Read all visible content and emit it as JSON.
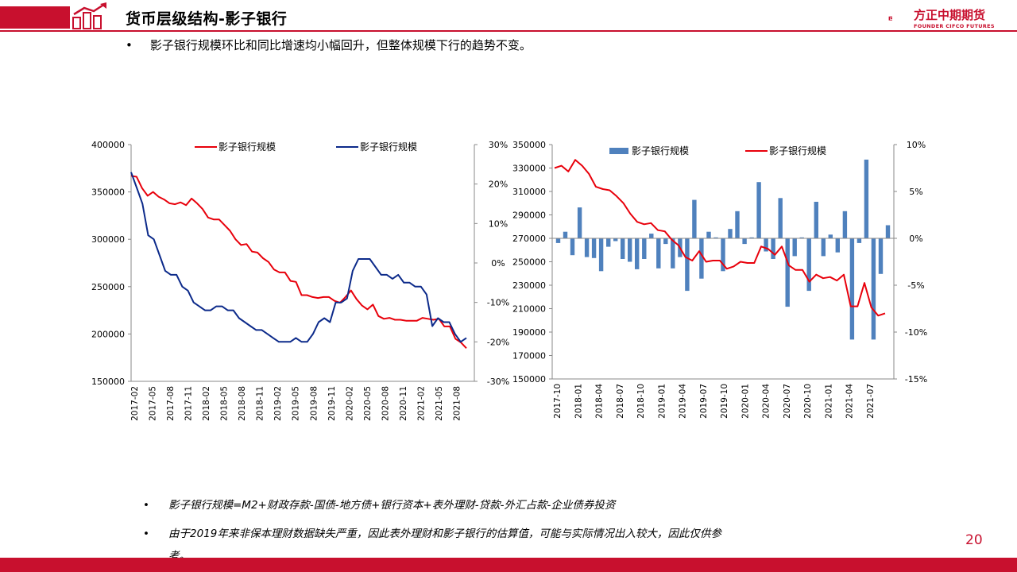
{
  "header": {
    "title": "货币层级结构-影子银行",
    "logo_cn": "方正中期期货",
    "logo_en": "FOUNDER CIFCO FUTURES",
    "accent_color": "#c8102e"
  },
  "bullet_top": "影子银行规模环比和同比增速均小幅回升，但整体规模下行的趋势不变。",
  "notes": [
    "影子银行规模=M2+财政存款-国债-地方债+银行资本+表外理财-贷款-外汇占款-企业债券投资",
    "由于2019年来非保本理财数据缺失严重，因此表外理财和影子银行的估算值，可能与实际情况出入较大，因此仅供参",
    "考。"
  ],
  "page_number": "20",
  "chart_data": [
    {
      "type": "line",
      "legend": [
        {
          "name": "影子银行规模",
          "color": "#e8000b",
          "axis": "left"
        },
        {
          "name": "影子银行规模",
          "color": "#0c2a8a",
          "axis": "right"
        }
      ],
      "x_tick_labels": [
        "2017-02",
        "2017-05",
        "2017-08",
        "2017-11",
        "2018-02",
        "2018-05",
        "2018-08",
        "2018-11",
        "2019-02",
        "2019-05",
        "2019-08",
        "2019-11",
        "2020-02",
        "2020-05",
        "2020-08",
        "2020-11",
        "2021-02",
        "2021-05",
        "2021-08"
      ],
      "y_left": {
        "min": 150000,
        "max": 400000,
        "ticks": [
          "400000",
          "350000",
          "300000",
          "250000",
          "200000",
          "150000"
        ]
      },
      "y_right": {
        "min": -30,
        "max": 30,
        "ticks": [
          "30%",
          "20%",
          "10%",
          "0%",
          "-10%",
          "-20%",
          "-30%"
        ]
      },
      "series": [
        {
          "name": "影子银行规模",
          "axis": "left",
          "color": "#e8000b",
          "values": [
            367000,
            366000,
            354000,
            346000,
            350000,
            345000,
            342000,
            338000,
            337000,
            339000,
            336000,
            343000,
            338000,
            332000,
            323000,
            321000,
            321000,
            315000,
            309000,
            300000,
            294000,
            295000,
            287000,
            286000,
            280000,
            276000,
            268000,
            265000,
            265000,
            256000,
            255000,
            241000,
            241000,
            239000,
            238000,
            239000,
            239000,
            235000,
            233000,
            239000,
            246000,
            237000,
            230000,
            226000,
            231000,
            219000,
            216000,
            217000,
            215000,
            215000,
            214000,
            214000,
            214000,
            217000,
            216000,
            215000,
            216000,
            208000,
            208000,
            195000,
            191000,
            185000
          ]
        },
        {
          "name": "影子银行规模",
          "axis": "right",
          "color": "#0c2a8a",
          "values": [
            23,
            19,
            15,
            7,
            6,
            2,
            -2,
            -3,
            -3,
            -6,
            -7,
            -10,
            -11,
            -12,
            -12,
            -11,
            -11,
            -12,
            -12,
            -14,
            -15,
            -16,
            -17,
            -17,
            -18,
            -19,
            -20,
            -20,
            -20,
            -19,
            -20,
            -20,
            -18,
            -15,
            -14,
            -15,
            -10,
            -10,
            -9,
            -2,
            1,
            1,
            1,
            -1,
            -3,
            -3,
            -4,
            -3,
            -5,
            -5,
            -6,
            -6,
            -8,
            -16,
            -14,
            -15,
            -15,
            -18,
            -20,
            -19
          ]
        }
      ]
    },
    {
      "type": "bar+line",
      "legend": [
        {
          "name": "影子银行规模",
          "color": "#4f81bd",
          "kind": "bar"
        },
        {
          "name": "影子银行规模",
          "color": "#e8000b",
          "kind": "line"
        }
      ],
      "x_tick_labels": [
        "2017-10",
        "2018-01",
        "2018-04",
        "2018-07",
        "2018-10",
        "2019-01",
        "2019-04",
        "2019-07",
        "2019-10",
        "2020-01",
        "2020-04",
        "2020-07",
        "2020-10",
        "2021-01",
        "2021-04",
        "2021-07"
      ],
      "y_left": {
        "min": 150000,
        "max": 350000,
        "ticks": [
          "350000",
          "330000",
          "310000",
          "290000",
          "270000",
          "250000",
          "230000",
          "210000",
          "190000",
          "170000",
          "150000"
        ]
      },
      "y_right": {
        "min": -15,
        "max": 10,
        "ticks": [
          "10%",
          "5%",
          "0%",
          "-5%",
          "-10%",
          "-15%"
        ]
      },
      "series": [
        {
          "name": "影子银行规模",
          "kind": "bar",
          "axis": "right",
          "color": "#4f81bd",
          "values": [
            -0.5,
            0.7,
            -1.8,
            3.3,
            -2.0,
            -2.1,
            -3.5,
            -0.9,
            -0.3,
            -2.2,
            -2.5,
            -3.3,
            -2.2,
            0.5,
            -3.2,
            -0.6,
            -3.2,
            -2.0,
            -5.6,
            4.1,
            -4.3,
            0.7,
            0.1,
            -3.5,
            1.0,
            2.9,
            -0.6,
            0.1,
            6.0,
            -1.4,
            -2.2,
            4.3,
            -7.3,
            -1.9,
            0.1,
            -5.6,
            3.9,
            -1.9,
            0.4,
            -1.5,
            2.9,
            -10.8,
            -0.5,
            8.4,
            -10.8,
            -3.8,
            1.4
          ]
        },
        {
          "name": "影子银行规模",
          "kind": "line",
          "axis": "left",
          "color": "#e8000b",
          "values": [
            330000,
            332000,
            327000,
            337000,
            332000,
            325000,
            314000,
            312000,
            311000,
            306000,
            300000,
            291000,
            284000,
            282000,
            283000,
            277000,
            276000,
            269000,
            264000,
            254000,
            251000,
            259000,
            250000,
            251000,
            251000,
            244000,
            246000,
            250000,
            249000,
            249000,
            263000,
            261000,
            256000,
            263000,
            247000,
            243000,
            243000,
            233000,
            239000,
            236000,
            237000,
            234000,
            239000,
            212000,
            212000,
            232000,
            211000,
            204000,
            206000
          ]
        }
      ]
    }
  ]
}
